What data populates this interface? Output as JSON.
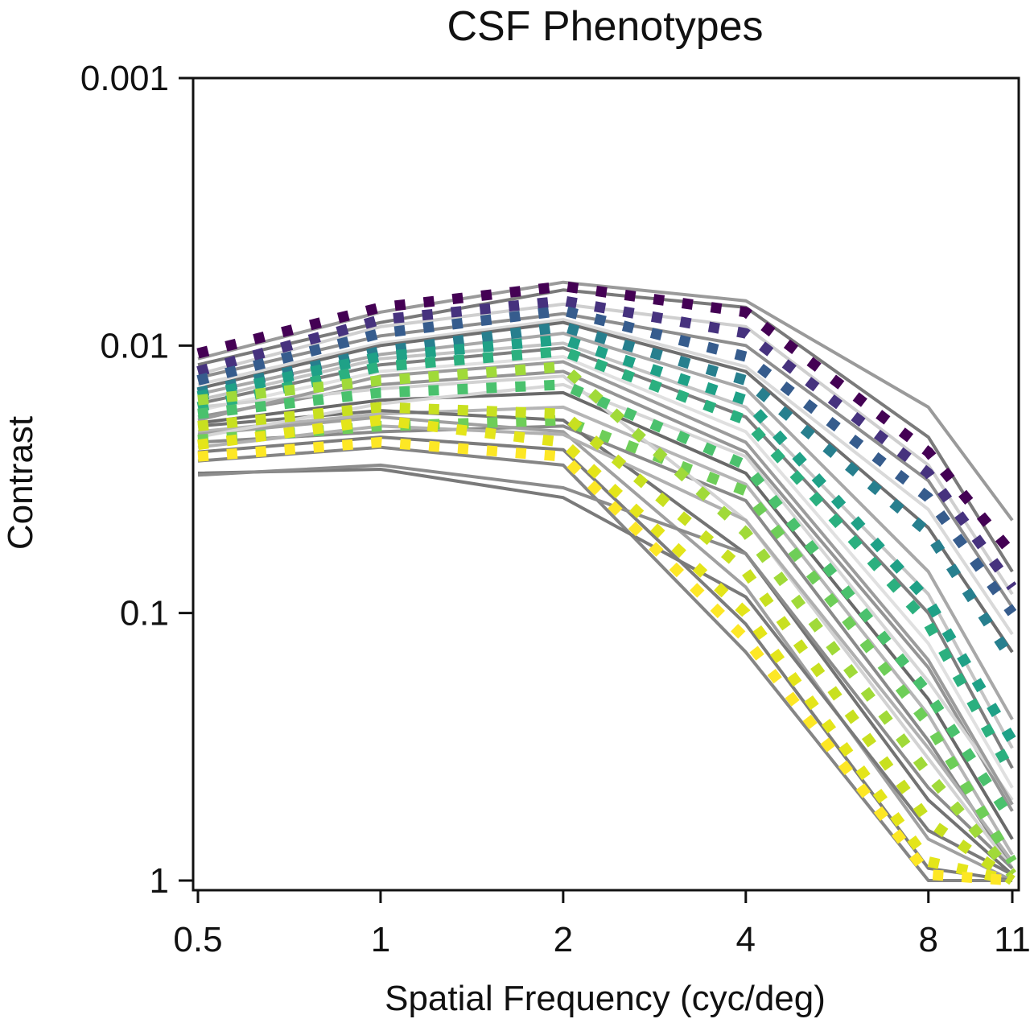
{
  "chart_data": {
    "type": "line",
    "title": "CSF Phenotypes",
    "xlabel": "Spatial Frequency (cyc/deg)",
    "ylabel": "Contrast",
    "x_scale": "log",
    "y_scale": "log",
    "y_inverted": true,
    "xlim": [
      0.5,
      11
    ],
    "ylim": [
      1,
      0.001
    ],
    "x_ticks": [
      0.5,
      1,
      2,
      4,
      8,
      11
    ],
    "x_tick_labels": [
      "0.5",
      "1",
      "2",
      "4",
      "8",
      "11"
    ],
    "y_ticks": [
      0.001,
      0.01,
      0.1,
      1
    ],
    "y_tick_labels": [
      "0.001",
      "0.01",
      "0.1",
      "1"
    ],
    "grid": false,
    "legend": "none",
    "x": [
      0.5,
      1,
      2,
      4,
      8,
      11
    ],
    "phenotypes": [
      {
        "color": "#440154",
        "values": [
          0.0107,
          0.0072,
          0.006,
          0.0075,
          0.025,
          0.06
        ]
      },
      {
        "color": "#46327e",
        "values": [
          0.0125,
          0.008,
          0.0068,
          0.009,
          0.03,
          0.08
        ]
      },
      {
        "color": "#365c8d",
        "values": [
          0.0135,
          0.009,
          0.0074,
          0.011,
          0.037,
          0.1
        ]
      },
      {
        "color": "#277f8e",
        "values": [
          0.015,
          0.0105,
          0.0085,
          0.0135,
          0.05,
          0.15
        ]
      },
      {
        "color": "#1fa187",
        "values": [
          0.0155,
          0.011,
          0.0095,
          0.016,
          0.09,
          0.3
        ]
      },
      {
        "color": "#2bb07f",
        "values": [
          0.017,
          0.012,
          0.0105,
          0.019,
          0.11,
          0.4
        ]
      },
      {
        "color": "#4ac16d",
        "values": [
          0.018,
          0.015,
          0.014,
          0.028,
          0.2,
          0.6
        ]
      },
      {
        "color": "#6ece58",
        "values": [
          0.0225,
          0.02,
          0.019,
          0.035,
          0.26,
          0.85
        ]
      },
      {
        "color": "#a0da39",
        "values": [
          0.016,
          0.0135,
          0.012,
          0.05,
          0.4,
          0.95
        ]
      },
      {
        "color": "#c8e020",
        "values": [
          0.02,
          0.017,
          0.018,
          0.07,
          0.6,
          1.0
        ]
      },
      {
        "color": "#e4e51a",
        "values": [
          0.0235,
          0.019,
          0.023,
          0.1,
          0.85,
          1.0
        ]
      },
      {
        "color": "#fde725",
        "values": [
          0.026,
          0.023,
          0.026,
          0.125,
          0.95,
          1.0
        ]
      }
    ],
    "individual_lines": [
      {
        "color": "#9a9a9a",
        "values": [
          0.0112,
          0.0075,
          0.0058,
          0.0068,
          0.017,
          0.045
        ]
      },
      {
        "color": "#7a7a7a",
        "values": [
          0.0118,
          0.0082,
          0.0062,
          0.0072,
          0.022,
          0.07
        ]
      },
      {
        "color": "#cfcfcf",
        "values": [
          0.0128,
          0.0085,
          0.007,
          0.0085,
          0.028,
          0.085
        ]
      },
      {
        "color": "#8e8e8e",
        "values": [
          0.0132,
          0.0092,
          0.0076,
          0.01,
          0.032,
          0.095
        ]
      },
      {
        "color": "#d9d9d9",
        "values": [
          0.014,
          0.0098,
          0.008,
          0.012,
          0.041,
          0.12
        ]
      },
      {
        "color": "#6f6f6f",
        "values": [
          0.0145,
          0.01,
          0.0082,
          0.0125,
          0.048,
          0.14
        ]
      },
      {
        "color": "#a8a8a8",
        "values": [
          0.0152,
          0.0108,
          0.009,
          0.0145,
          0.07,
          0.25
        ]
      },
      {
        "color": "#c4c4c4",
        "values": [
          0.016,
          0.0112,
          0.0098,
          0.017,
          0.085,
          0.32
        ]
      },
      {
        "color": "#7f7f7f",
        "values": [
          0.0165,
          0.0118,
          0.0102,
          0.0185,
          0.1,
          0.38
        ]
      },
      {
        "color": "#e0e0e0",
        "values": [
          0.0175,
          0.0125,
          0.011,
          0.021,
          0.13,
          0.45
        ]
      },
      {
        "color": "#959595",
        "values": [
          0.0185,
          0.014,
          0.0125,
          0.025,
          0.16,
          0.55
        ]
      },
      {
        "color": "#6a6a6a",
        "values": [
          0.0195,
          0.016,
          0.015,
          0.03,
          0.21,
          0.7
        ]
      },
      {
        "color": "#b5b5b5",
        "values": [
          0.021,
          0.018,
          0.017,
          0.033,
          0.24,
          0.8
        ]
      },
      {
        "color": "#8a8a8a",
        "values": [
          0.023,
          0.021,
          0.02,
          0.038,
          0.3,
          0.9
        ]
      },
      {
        "color": "#d2d2d2",
        "values": [
          0.017,
          0.0145,
          0.013,
          0.045,
          0.35,
          0.9
        ]
      },
      {
        "color": "#737373",
        "values": [
          0.02,
          0.0175,
          0.019,
          0.06,
          0.5,
          0.95
        ]
      },
      {
        "color": "#a0a0a0",
        "values": [
          0.0215,
          0.0185,
          0.021,
          0.08,
          0.7,
          1.0
        ]
      },
      {
        "color": "#7c7c7c",
        "values": [
          0.025,
          0.022,
          0.0245,
          0.11,
          0.9,
          1.0
        ]
      },
      {
        "color": "#858585",
        "values": [
          0.027,
          0.024,
          0.028,
          0.14,
          1.0,
          1.0
        ]
      },
      {
        "color": "#7a7a7a",
        "values": [
          0.03,
          0.029,
          0.037,
          0.087,
          0.65,
          0.95
        ]
      },
      {
        "color": "#8c8c8c",
        "values": [
          0.0305,
          0.028,
          0.034,
          0.06,
          0.45,
          0.9
        ]
      },
      {
        "color": "#b0b0b0",
        "values": [
          0.024,
          0.02,
          0.0215,
          0.045,
          0.32,
          0.85
        ]
      },
      {
        "color": "#d6d6d6",
        "values": [
          0.022,
          0.0165,
          0.014,
          0.026,
          0.18,
          0.5
        ]
      },
      {
        "color": "#9c9c9c",
        "values": [
          0.019,
          0.013,
          0.0115,
          0.023,
          0.15,
          0.52
        ]
      }
    ]
  }
}
